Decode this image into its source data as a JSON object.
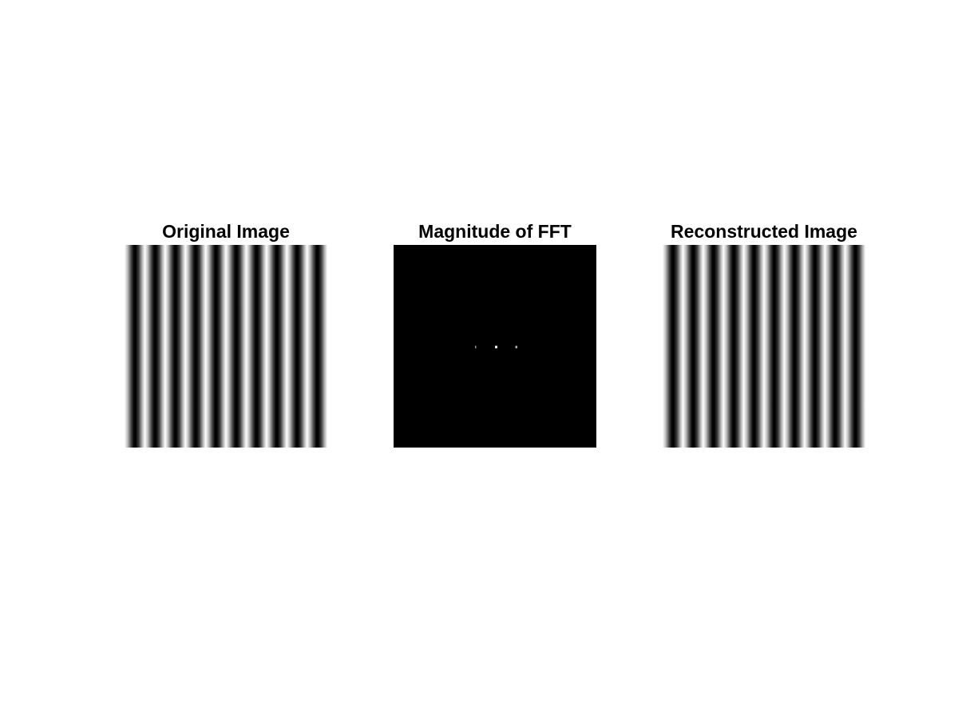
{
  "figure": {
    "background": "#ffffff",
    "panels": [
      {
        "id": "original",
        "title": "Original Image",
        "kind": "grating",
        "stripe_count": 10
      },
      {
        "id": "fft",
        "title": "Magnitude of FFT",
        "kind": "spectrum",
        "background": "#000000"
      },
      {
        "id": "recon",
        "title": "Reconstructed Image",
        "kind": "grating",
        "stripe_count": 10
      }
    ]
  }
}
